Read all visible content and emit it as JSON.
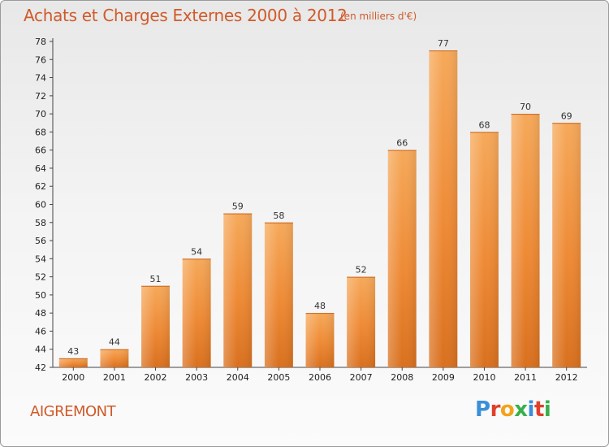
{
  "header": {
    "title": "Achats et Charges Externes 2000 à 2012",
    "subtitle": "(en milliers d'€)"
  },
  "footer": {
    "commune": "AIGREMONT",
    "logo_text": "Proxiti",
    "logo_colors": [
      "#3a8fd8",
      "#e0402a",
      "#f2a31b",
      "#38b04a",
      "#3a8fd8",
      "#e0402a",
      "#38b04a"
    ]
  },
  "chart_data": {
    "type": "bar",
    "categories": [
      "2000",
      "2001",
      "2002",
      "2003",
      "2004",
      "2005",
      "2006",
      "2007",
      "2008",
      "2009",
      "2010",
      "2011",
      "2012"
    ],
    "values": [
      43,
      44,
      51,
      54,
      59,
      58,
      48,
      52,
      66,
      77,
      68,
      70,
      69
    ],
    "title": "Achats et Charges Externes 2000 à 2012",
    "subtitle": "(en milliers d'€)",
    "ylim": [
      42,
      78
    ],
    "yticks": [
      42,
      44,
      46,
      48,
      50,
      52,
      54,
      56,
      58,
      60,
      62,
      64,
      66,
      68,
      70,
      72,
      74,
      76,
      78
    ],
    "grid": false,
    "bar_color": "#ee8a35",
    "bar_color_light": "#f6a95a",
    "bar_color_dark": "#d9701e"
  }
}
